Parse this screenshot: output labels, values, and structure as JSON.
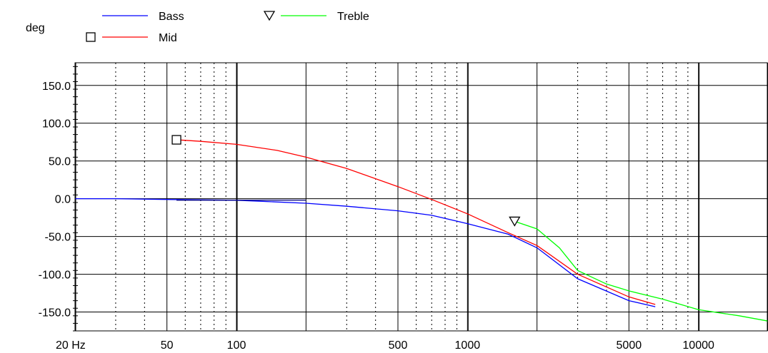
{
  "chart_data": {
    "type": "line",
    "title": "",
    "xlabel": "",
    "ylabel": "deg",
    "x_scale": "log",
    "xlim": [
      20,
      20000
    ],
    "ylim": [
      -175,
      180
    ],
    "x_ticks": [
      {
        "value": 20,
        "label": "20 Hz"
      },
      {
        "value": 50,
        "label": "50"
      },
      {
        "value": 100,
        "label": "100"
      },
      {
        "value": 500,
        "label": "500"
      },
      {
        "value": 1000,
        "label": "1000"
      },
      {
        "value": 5000,
        "label": "5000"
      },
      {
        "value": 10000,
        "label": "10000"
      }
    ],
    "y_ticks": [
      {
        "value": 150,
        "label": "150.0"
      },
      {
        "value": 100,
        "label": "100.0"
      },
      {
        "value": 50,
        "label": "50.0"
      },
      {
        "value": 0,
        "label": "0.0"
      },
      {
        "value": -50,
        "label": "-50.0"
      },
      {
        "value": -100,
        "label": "-100.0"
      },
      {
        "value": -150,
        "label": "-150.0"
      }
    ],
    "grid": true,
    "legend_position": "top",
    "series": [
      {
        "name": "Bass",
        "color": "#0000ff",
        "marker": "none",
        "x": [
          20,
          30,
          50,
          100,
          200,
          300,
          500,
          700,
          1000,
          1500,
          2000,
          3000,
          5000,
          6500
        ],
        "y": [
          0,
          0,
          -1,
          -2,
          -6,
          -10,
          -16,
          -22,
          -33,
          -47,
          -65,
          -106,
          -135,
          -143
        ]
      },
      {
        "name": "Mid",
        "color": "#ff0000",
        "marker": "square",
        "x": [
          55,
          70,
          100,
          150,
          200,
          300,
          500,
          700,
          1000,
          1500,
          2000,
          3000,
          5000,
          6500
        ],
        "y": [
          78,
          76,
          72,
          64,
          55,
          40,
          16,
          -1,
          -20,
          -45,
          -62,
          -100,
          -130,
          -140
        ]
      },
      {
        "name": "Treble",
        "color": "#00ff00",
        "marker": "triangle-down",
        "x": [
          1600,
          2000,
          2500,
          3000,
          4000,
          5000,
          7000,
          10000,
          15000,
          20000
        ],
        "y": [
          -30,
          -40,
          -65,
          -95,
          -113,
          -122,
          -133,
          -147,
          -155,
          -162
        ]
      }
    ],
    "marker_points": [
      {
        "series": "Mid",
        "x": 55,
        "y": 78
      },
      {
        "series": "Treble",
        "x": 1600,
        "y": -30
      }
    ],
    "y_marks_series": [
      {
        "series": "Mid",
        "x": 55,
        "y": -2,
        "color": "#000080"
      }
    ]
  }
}
